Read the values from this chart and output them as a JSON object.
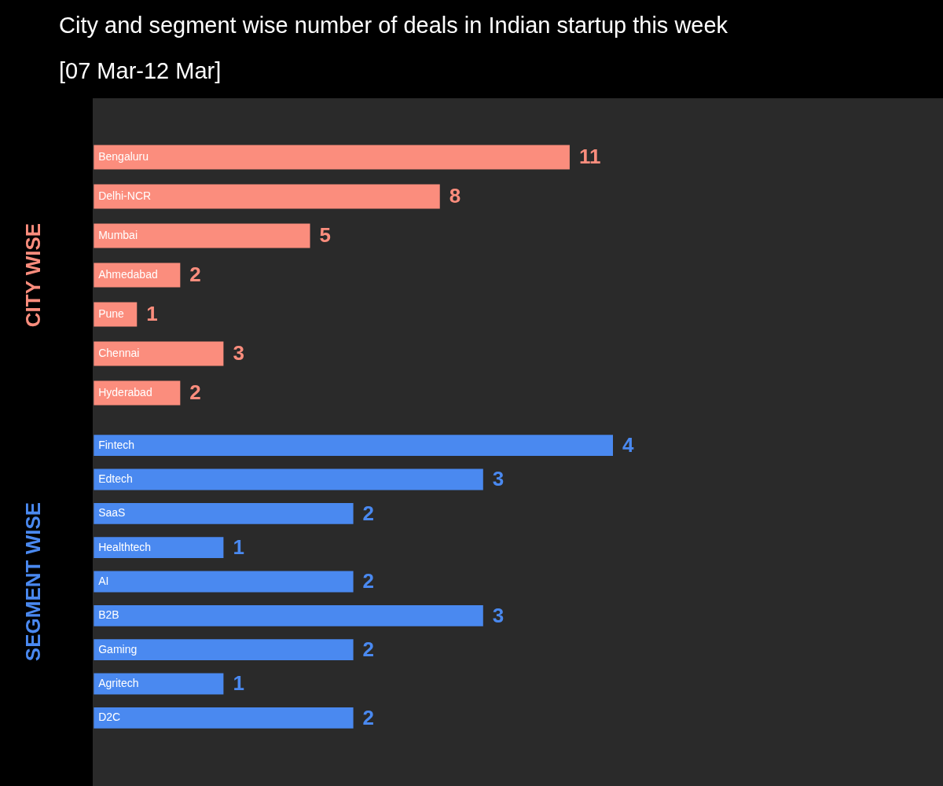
{
  "chart_data": [
    {
      "type": "bar",
      "orientation": "horizontal",
      "title": "City and segment wise number of deals in Indian startup this week",
      "subtitle": "[07 Mar-12 Mar]",
      "ylabel": "CITY WISE",
      "categories": [
        "Bengaluru",
        "Delhi-NCR",
        "Mumbai",
        "Ahmedabad",
        "Pune",
        "Chennai",
        "Hyderabad"
      ],
      "values": [
        11,
        8,
        5,
        2,
        1,
        3,
        2
      ],
      "color": "#fb8d7d",
      "data_labels": true
    },
    {
      "type": "bar",
      "orientation": "horizontal",
      "ylabel": "SEGMENT WISE",
      "categories": [
        "Fintech",
        "Edtech",
        "SaaS",
        "Healthtech",
        "AI",
        "B2B",
        "Gaming",
        "Agritech",
        "D2C"
      ],
      "values": [
        4,
        3,
        2,
        1,
        2,
        3,
        2,
        1,
        2
      ],
      "color": "#4a89f0",
      "data_labels": true
    }
  ]
}
